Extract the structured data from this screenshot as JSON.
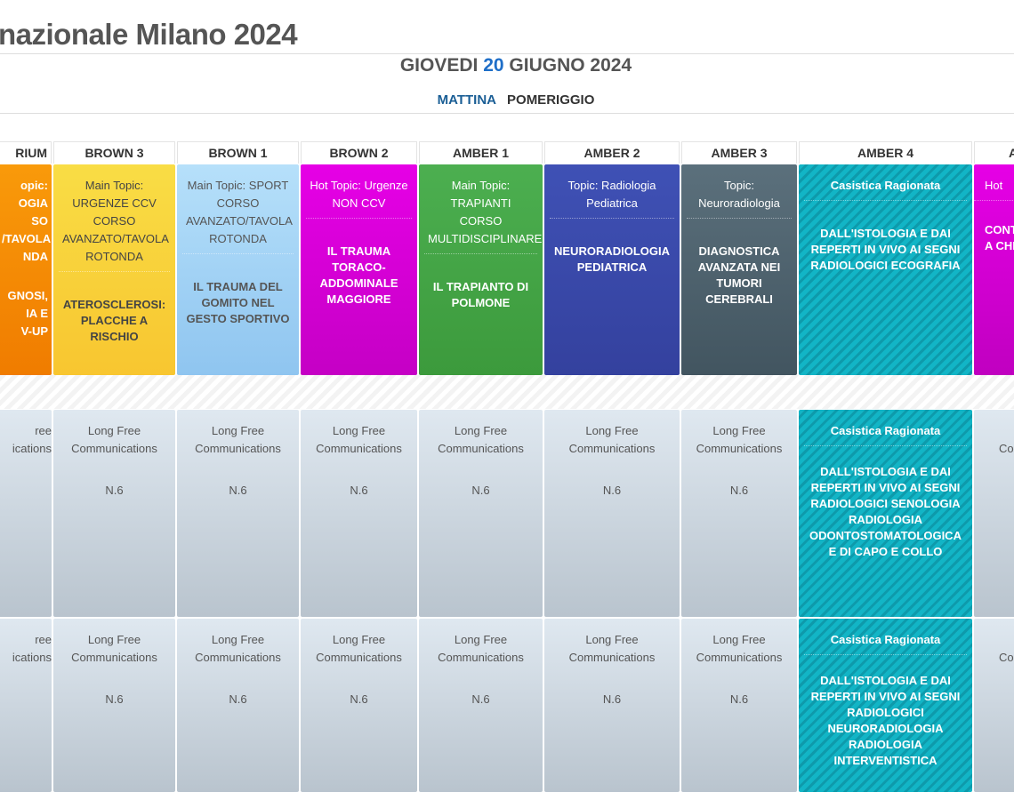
{
  "title": "nazionale Milano 2024",
  "date": {
    "prefix": "GIOVEDI",
    "day": "20",
    "suffix": "GIUGNO 2024"
  },
  "tabs": [
    {
      "label": "MATTINA",
      "active": true
    },
    {
      "label": "POMERIGGIO",
      "active": false
    }
  ],
  "left_partial": {
    "header": "RIUM",
    "lines1": [
      "opic:",
      "OGIA",
      "SO",
      "/TAVOLA",
      "NDA"
    ],
    "lines2": [
      "GNOSI,",
      "IA E",
      "V-UP"
    ],
    "row2": [
      "ree",
      "ications"
    ],
    "row3": [
      "ree",
      "ications"
    ]
  },
  "right_partial": {
    "header": "A",
    "title": "Hot",
    "lines": [
      "CONT",
      "A CHI"
    ],
    "row2": "Co",
    "row3": "Co"
  },
  "rooms": [
    {
      "name": "BROWN 3",
      "color": "#f8c630",
      "color2": "#f9dd45",
      "text": "#444",
      "title": "Main Topic: URGENZE CCV CORSO AVANZATO/TAVOLA ROTONDA",
      "body": "ATEROSCLEROSI: PLACCHE A RISCHIO"
    },
    {
      "name": "BROWN 1",
      "color": "#8fc5f0",
      "color2": "#b6e0fa",
      "text": "#555",
      "title": "Main Topic: SPORT CORSO AVANZATO/TAVOLA ROTONDA",
      "body": "IL TRAUMA DEL GOMITO NEL GESTO SPORTIVO"
    },
    {
      "name": "BROWN 2",
      "color": "#c500c5",
      "color2": "#e600e6",
      "text": "#fff",
      "title": "Hot Topic: Urgenze NON CCV",
      "body": "IL TRAUMA TORACO-ADDOMINALE MAGGIORE"
    },
    {
      "name": "AMBER 1",
      "color": "#3c9a3c",
      "color2": "#4caf50",
      "text": "#fff",
      "title": "Main Topic: TRAPIANTI CORSO MULTIDISCIPLINARE",
      "body": "IL TRAPIANTO DI POLMONE"
    },
    {
      "name": "AMBER 2",
      "color": "#34419e",
      "color2": "#3f51b5",
      "text": "#fff",
      "title": "Topic: Radiologia Pediatrica",
      "body": "NEURORADIOLOGIA PEDIATRICA"
    },
    {
      "name": "AMBER 3",
      "color": "#425560",
      "color2": "#5b707c",
      "text": "#fff",
      "title": "Topic: Neuroradiologia",
      "body": "DIAGNOSTICA AVANZATA NEI TUMORI CEREBRALI"
    },
    {
      "name": "AMBER 4",
      "teal": true,
      "title": "Casistica Ragionata",
      "body": "DALL'ISTOLOGIA E DAI REPERTI IN VIVO AI SEGNI RADIOLOGICI ECOGRAFIA"
    }
  ],
  "lfc": {
    "label": "Long Free Communications",
    "number": "N.6"
  },
  "amber4_row2": {
    "title": "Casistica Ragionata",
    "body": "DALL'ISTOLOGIA E DAI REPERTI IN VIVO AI SEGNI RADIOLOGICI SENOLOGIA RADIOLOGIA ODONTOSTOMATOLOGICA E DI CAPO E COLLO"
  },
  "amber4_row3": {
    "title": "Casistica Ragionata",
    "body": "DALL'ISTOLOGIA E DAI REPERTI IN VIVO AI SEGNI RADIOLOGICI NEURORADIOLOGIA RADIOLOGIA INTERVENTISTICA"
  }
}
